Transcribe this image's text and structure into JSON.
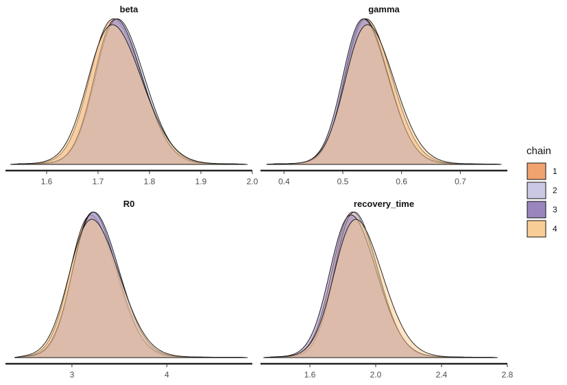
{
  "chart_data": {
    "type": "area",
    "chart_kind": "posterior density, overlaid chains",
    "legend": {
      "title": "chain",
      "placement": "right",
      "entries": [
        {
          "label": "1",
          "color": "#f0a36f"
        },
        {
          "label": "2",
          "color": "#cac8e2"
        },
        {
          "label": "3",
          "color": "#9a86bd"
        },
        {
          "label": "4",
          "color": "#f9cd96"
        }
      ]
    },
    "panels": [
      {
        "title": "beta",
        "xlim": [
          1.52,
          2.0
        ],
        "ticks": [
          1.6,
          1.7,
          1.8,
          1.9,
          2.0
        ],
        "tick_labels": [
          "1.6",
          "1.7",
          "1.8",
          "1.9",
          "2.0"
        ],
        "support": [
          1.53,
          1.99
        ],
        "series": [
          {
            "name": "1",
            "mean": 1.73,
            "sd": 0.05,
            "peak": 1.0
          },
          {
            "name": "2",
            "mean": 1.738,
            "sd": 0.047,
            "peak": 1.0
          },
          {
            "name": "3",
            "mean": 1.735,
            "sd": 0.046,
            "peak": 1.0
          },
          {
            "name": "4",
            "mean": 1.728,
            "sd": 0.052,
            "peak": 0.96
          }
        ]
      },
      {
        "title": "gamma",
        "xlim": [
          0.36,
          0.78
        ],
        "ticks": [
          0.4,
          0.5,
          0.6,
          0.7
        ],
        "tick_labels": [
          "0.4",
          "0.5",
          "0.6",
          "0.7"
        ],
        "support": [
          0.37,
          0.77
        ],
        "series": [
          {
            "name": "1",
            "mean": 0.54,
            "sd": 0.039,
            "peak": 1.0
          },
          {
            "name": "2",
            "mean": 0.537,
            "sd": 0.037,
            "peak": 1.0
          },
          {
            "name": "3",
            "mean": 0.535,
            "sd": 0.038,
            "peak": 1.0
          },
          {
            "name": "4",
            "mean": 0.542,
            "sd": 0.041,
            "peak": 0.96
          }
        ]
      },
      {
        "title": "R0",
        "xlim": [
          2.3,
          4.9
        ],
        "ticks": [
          3,
          4
        ],
        "tick_labels": [
          "3",
          "4"
        ],
        "support": [
          2.4,
          4.85
        ],
        "series": [
          {
            "name": "1",
            "mean": 3.2,
            "sd": 0.24,
            "peak": 0.98
          },
          {
            "name": "2",
            "mean": 3.22,
            "sd": 0.23,
            "peak": 1.0
          },
          {
            "name": "3",
            "mean": 3.23,
            "sd": 0.24,
            "peak": 1.0
          },
          {
            "name": "4",
            "mean": 3.21,
            "sd": 0.26,
            "peak": 0.95
          }
        ]
      },
      {
        "title": "recovery_time",
        "xlim": [
          1.3,
          2.8
        ],
        "ticks": [
          1.6,
          2.0,
          2.4,
          2.8
        ],
        "tick_labels": [
          "1.6",
          "2.0",
          "2.4",
          "2.8"
        ],
        "support": [
          1.32,
          2.74
        ],
        "series": [
          {
            "name": "1",
            "mean": 1.86,
            "sd": 0.135,
            "peak": 1.0
          },
          {
            "name": "2",
            "mean": 1.87,
            "sd": 0.13,
            "peak": 1.0
          },
          {
            "name": "3",
            "mean": 1.85,
            "sd": 0.14,
            "peak": 0.98
          },
          {
            "name": "4",
            "mean": 1.88,
            "sd": 0.145,
            "peak": 0.95
          }
        ]
      }
    ]
  }
}
